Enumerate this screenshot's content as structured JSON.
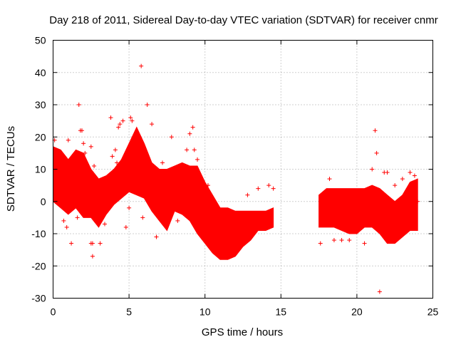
{
  "chart_data": {
    "type": "scatter",
    "title": "Day 218 of 2011, Sidereal Day-to-day VTEC variation (SDTVAR) for receiver cnmr",
    "xlabel": "GPS time / hours",
    "ylabel": "SDTVAR / TECUs",
    "xlim": [
      0,
      25
    ],
    "ylim": [
      -30,
      50
    ],
    "xticks": [
      0,
      5,
      10,
      15,
      20,
      25
    ],
    "yticks": [
      -30,
      -20,
      -10,
      0,
      10,
      20,
      30,
      40,
      50
    ],
    "grid": true,
    "marker": "+",
    "color": "#ff0000",
    "series": [
      {
        "name": "SDTVAR",
        "band": {
          "x": [
            0.0,
            0.5,
            1.0,
            1.5,
            2.0,
            2.5,
            3.0,
            3.5,
            4.0,
            4.5,
            5.0,
            5.5,
            6.0,
            6.5,
            7.0,
            7.5,
            8.0,
            8.5,
            9.0,
            9.5,
            10.0,
            10.5,
            11.0,
            11.5,
            12.0,
            12.5,
            13.0,
            13.5,
            14.0,
            14.5
          ],
          "upper": [
            17,
            16,
            13,
            16,
            15,
            10,
            7,
            8,
            10,
            13,
            18,
            23,
            18,
            12,
            10,
            10,
            11,
            12,
            11,
            11,
            6,
            2,
            -2,
            -2,
            -3,
            -3,
            -3,
            -3,
            -3,
            -2
          ],
          "lower": [
            0,
            -2,
            -4,
            -2,
            -5,
            -5,
            -8,
            -4,
            -1,
            1,
            3,
            2,
            1,
            -3,
            -6,
            -9,
            -3,
            -4,
            -6,
            -10,
            -13,
            -16,
            -18,
            -18,
            -17,
            -14,
            -12,
            -9,
            -9,
            -8
          ]
        },
        "band2": {
          "x": [
            17.5,
            18.0,
            18.5,
            19.0,
            19.5,
            20.0,
            20.5,
            21.0,
            21.5,
            22.0,
            22.5,
            23.0,
            23.5,
            24.0
          ],
          "upper": [
            2,
            4,
            4,
            4,
            4,
            4,
            4,
            5,
            4,
            2,
            0,
            2,
            6,
            7
          ],
          "lower": [
            -8,
            -8,
            -8,
            -9,
            -10,
            -10,
            -8,
            -8,
            -10,
            -13,
            -13,
            -11,
            -9,
            -9
          ]
        },
        "outliers": {
          "x": [
            0.1,
            0.2,
            0.4,
            0.7,
            0.9,
            1.0,
            1.2,
            1.3,
            1.6,
            1.7,
            1.8,
            1.9,
            2.0,
            2.1,
            2.5,
            2.5,
            2.6,
            2.6,
            2.7,
            3.1,
            3.2,
            3.4,
            3.8,
            3.9,
            4.1,
            4.2,
            4.3,
            4.4,
            4.6,
            4.8,
            5.0,
            5.1,
            5.2,
            5.3,
            5.4,
            5.8,
            5.9,
            6.2,
            6.5,
            6.7,
            6.8,
            7.2,
            7.8,
            8.2,
            8.5,
            8.8,
            9.0,
            9.2,
            9.3,
            9.5,
            10.2,
            11.5,
            12.8,
            13.5,
            14.2,
            14.5,
            17.6,
            18.2,
            18.5,
            19.0,
            19.5,
            20.5,
            21.0,
            21.2,
            21.3,
            21.5,
            21.8,
            22.0,
            22.2,
            22.5,
            23.0,
            23.5,
            23.8,
            24.0
          ],
          "y": [
            19,
            15,
            14,
            -6,
            -8,
            19,
            -13,
            13,
            -5,
            30,
            22,
            22,
            18,
            15,
            17,
            -13,
            -17,
            -13,
            11,
            -13,
            2,
            -7,
            26,
            14,
            16,
            12,
            23,
            24,
            25,
            -8,
            -2,
            26,
            25,
            20,
            16,
            42,
            -5,
            30,
            24,
            -3,
            -11,
            12,
            20,
            -6,
            5,
            16,
            21,
            23,
            16,
            13,
            5,
            -16,
            2,
            4,
            5,
            4,
            -13,
            7,
            -12,
            -12,
            -12,
            -13,
            10,
            22,
            15,
            -28,
            9,
            9,
            -12,
            5,
            7,
            9,
            8,
            0
          ]
        }
      }
    ]
  }
}
